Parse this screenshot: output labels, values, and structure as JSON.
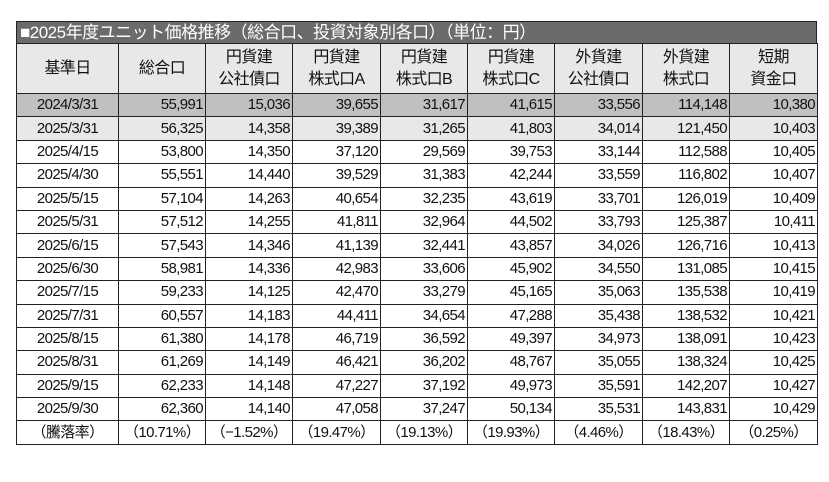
{
  "title": "■2025年度ユニット価格推移（総合口、投資対象別各口）（単位：円）",
  "colors": {
    "title_bg": "#6b6b6b",
    "header_bg": "#e8e8e8",
    "base_row_bg": "#c0c0c0",
    "prev_row_bg": "#e8e8e8"
  },
  "headers": [
    [
      "基準日"
    ],
    [
      "総合口"
    ],
    [
      "円貨建",
      "公社債口"
    ],
    [
      "円貨建",
      "株式口A"
    ],
    [
      "円貨建",
      "株式口B"
    ],
    [
      "円貨建",
      "株式口C"
    ],
    [
      "外貨建",
      "公社債口"
    ],
    [
      "外貨建",
      "株式口"
    ],
    [
      "短期",
      "資金口"
    ]
  ],
  "rows": [
    [
      "2024/3/31",
      "55,991",
      "15,036",
      "39,655",
      "31,617",
      "41,615",
      "33,556",
      "114,148",
      "10,380"
    ],
    [
      "2025/3/31",
      "56,325",
      "14,358",
      "39,389",
      "31,265",
      "41,803",
      "34,014",
      "121,450",
      "10,403"
    ],
    [
      "2025/4/15",
      "53,800",
      "14,350",
      "37,120",
      "29,569",
      "39,753",
      "33,144",
      "112,588",
      "10,405"
    ],
    [
      "2025/4/30",
      "55,551",
      "14,440",
      "39,529",
      "31,383",
      "42,244",
      "33,559",
      "116,802",
      "10,407"
    ],
    [
      "2025/5/15",
      "57,104",
      "14,263",
      "40,654",
      "32,235",
      "43,619",
      "33,701",
      "126,019",
      "10,409"
    ],
    [
      "2025/5/31",
      "57,512",
      "14,255",
      "41,811",
      "32,964",
      "44,502",
      "33,793",
      "125,387",
      "10,411"
    ],
    [
      "2025/6/15",
      "57,543",
      "14,346",
      "41,139",
      "32,441",
      "43,857",
      "34,026",
      "126,716",
      "10,413"
    ],
    [
      "2025/6/30",
      "58,981",
      "14,336",
      "42,983",
      "33,606",
      "45,902",
      "34,550",
      "131,085",
      "10,415"
    ],
    [
      "2025/7/15",
      "59,233",
      "14,125",
      "42,470",
      "33,279",
      "45,165",
      "35,063",
      "135,538",
      "10,419"
    ],
    [
      "2025/7/31",
      "60,557",
      "14,183",
      "44,411",
      "34,654",
      "47,288",
      "35,438",
      "138,532",
      "10,421"
    ],
    [
      "2025/8/15",
      "61,380",
      "14,178",
      "46,719",
      "36,592",
      "49,397",
      "34,973",
      "138,091",
      "10,423"
    ],
    [
      "2025/8/31",
      "61,269",
      "14,149",
      "46,421",
      "36,202",
      "48,767",
      "35,055",
      "138,324",
      "10,425"
    ],
    [
      "2025/9/15",
      "62,233",
      "14,148",
      "47,227",
      "37,192",
      "49,973",
      "35,591",
      "142,207",
      "10,427"
    ],
    [
      "2025/9/30",
      "62,360",
      "14,140",
      "47,058",
      "37,247",
      "50,134",
      "35,531",
      "143,831",
      "10,429"
    ]
  ],
  "rate_row": [
    "（騰落率）",
    "（10.71%）",
    "（−1.52%）",
    "（19.47%）",
    "（19.13%）",
    "（19.93%）",
    "（4.46%）",
    "（18.43%）",
    "（0.25%）"
  ]
}
